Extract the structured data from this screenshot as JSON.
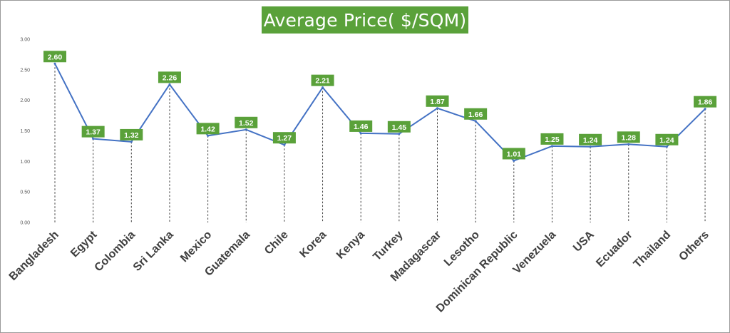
{
  "chart_data": {
    "type": "line",
    "title": "Average Price( $/SQM)",
    "categories": [
      "Bangladesh",
      "Egypt",
      "Colombia",
      "Sri Lanka",
      "Mexico",
      "Guatemala",
      "Chile",
      "Korea",
      "Kenya",
      "Turkey",
      "Madagascar",
      "Lesotho",
      "Dominican Republic",
      "Venezuela",
      "USA",
      "Ecuador",
      "Thailand",
      "Others"
    ],
    "series": [
      {
        "values": [
          2.6,
          1.37,
          1.32,
          2.26,
          1.42,
          1.52,
          1.27,
          2.21,
          1.46,
          1.45,
          1.87,
          1.66,
          1.01,
          1.25,
          1.24,
          1.28,
          1.24,
          1.86
        ]
      }
    ],
    "ylim": [
      0,
      3
    ],
    "yticks": [
      "0.00",
      "0.50",
      "1.00",
      "1.50",
      "2.00",
      "2.50",
      "3.00"
    ],
    "data_labels": true,
    "grid": false,
    "legend": "none",
    "colors": {
      "line": "#4472c4",
      "label_bg": "#5aa13a",
      "title_bg": "#5aa13a",
      "drop_line": "#404040"
    }
  }
}
